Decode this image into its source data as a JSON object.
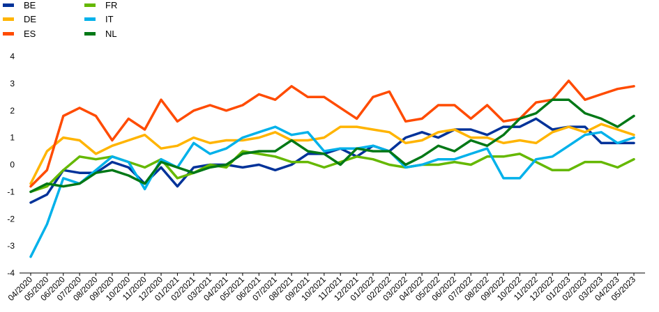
{
  "chart_data": {
    "type": "line",
    "title": "",
    "xlabel": "",
    "ylabel": "",
    "ylim": [
      -4,
      4
    ],
    "yticks": [
      4,
      3,
      2,
      1,
      0,
      -1,
      -2,
      -3,
      -4
    ],
    "grid": false,
    "legend_position": "top-left",
    "categories": [
      "04/2020",
      "05/2020",
      "06/2020",
      "07/2020",
      "08/2020",
      "09/2020",
      "10/2020",
      "11/2020",
      "12/2020",
      "01/2021",
      "02/2021",
      "03/2021",
      "04/2021",
      "05/2021",
      "06/2021",
      "07/2021",
      "08/2021",
      "09/2021",
      "10/2021",
      "11/2021",
      "12/2021",
      "01/2022",
      "02/2022",
      "03/2022",
      "04/2022",
      "05/2022",
      "06/2022",
      "07/2022",
      "08/2022",
      "09/2022",
      "10/2022",
      "11/2022",
      "12/2022",
      "01/2023",
      "02/2023",
      "03/2023",
      "04/2023",
      "05/2023"
    ],
    "series": [
      {
        "name": "BE",
        "color": "#003299",
        "values": [
          -1.4,
          -1.1,
          -0.2,
          -0.3,
          -0.3,
          0.1,
          -0.1,
          -0.7,
          -0.1,
          -0.8,
          -0.1,
          0.0,
          0.0,
          -0.1,
          0.0,
          -0.2,
          0.0,
          0.4,
          0.4,
          0.6,
          0.3,
          0.7,
          0.5,
          1.0,
          1.2,
          1.0,
          1.3,
          1.3,
          1.1,
          1.4,
          1.4,
          1.7,
          1.3,
          1.4,
          1.4,
          0.8,
          0.8,
          0.8
        ]
      },
      {
        "name": "DE",
        "color": "#FFB400",
        "values": [
          -0.7,
          0.5,
          1.0,
          0.9,
          0.4,
          0.7,
          0.9,
          1.1,
          0.6,
          0.7,
          1.0,
          0.8,
          0.9,
          0.9,
          1.0,
          1.2,
          0.9,
          0.9,
          1.0,
          1.4,
          1.4,
          1.3,
          1.2,
          0.8,
          0.9,
          1.2,
          1.3,
          1.0,
          1.0,
          0.8,
          0.9,
          0.8,
          1.2,
          1.4,
          1.2,
          1.5,
          1.3,
          1.1
        ]
      },
      {
        "name": "ES",
        "color": "#FF4B00",
        "values": [
          -0.8,
          -0.2,
          1.8,
          2.1,
          1.8,
          0.9,
          1.7,
          1.3,
          2.4,
          1.6,
          2.0,
          2.2,
          2.0,
          2.2,
          2.6,
          2.4,
          2.9,
          2.5,
          2.5,
          2.1,
          1.7,
          2.5,
          2.7,
          1.6,
          1.7,
          2.2,
          2.2,
          1.7,
          2.2,
          1.6,
          1.7,
          2.3,
          2.4,
          3.1,
          2.4,
          2.6,
          2.8,
          2.9
        ]
      },
      {
        "name": "FR",
        "color": "#65B800",
        "values": [
          -1.0,
          -0.8,
          -0.2,
          0.3,
          0.2,
          0.3,
          0.1,
          -0.1,
          0.2,
          -0.5,
          -0.3,
          0.0,
          -0.1,
          0.5,
          0.4,
          0.3,
          0.1,
          0.1,
          -0.1,
          0.1,
          0.3,
          0.2,
          0.0,
          -0.1,
          0.0,
          0.0,
          0.1,
          0.0,
          0.3,
          0.3,
          0.4,
          0.1,
          -0.2,
          -0.2,
          0.1,
          0.1,
          -0.1,
          0.2
        ]
      },
      {
        "name": "IT",
        "color": "#00B1EA",
        "values": [
          -3.4,
          -2.2,
          -0.5,
          -0.7,
          -0.2,
          0.3,
          0.1,
          -0.9,
          0.2,
          -0.1,
          0.8,
          0.4,
          0.6,
          1.0,
          1.2,
          1.4,
          1.1,
          1.2,
          0.5,
          0.6,
          0.6,
          0.7,
          0.5,
          -0.1,
          0.0,
          0.2,
          0.2,
          0.4,
          0.6,
          -0.5,
          -0.5,
          0.2,
          0.3,
          0.7,
          1.1,
          1.2,
          0.8,
          1.0
        ]
      },
      {
        "name": "NL",
        "color": "#007816",
        "values": [
          -1.0,
          -0.7,
          -0.8,
          -0.7,
          -0.3,
          -0.2,
          -0.4,
          -0.7,
          0.1,
          -0.1,
          -0.3,
          -0.1,
          0.0,
          0.4,
          0.5,
          0.5,
          0.9,
          0.5,
          0.4,
          0.0,
          0.6,
          0.5,
          0.5,
          0.0,
          0.3,
          0.7,
          0.5,
          0.9,
          0.7,
          1.1,
          1.7,
          1.9,
          2.4,
          2.4,
          1.9,
          1.7,
          1.4,
          1.8
        ]
      }
    ]
  }
}
